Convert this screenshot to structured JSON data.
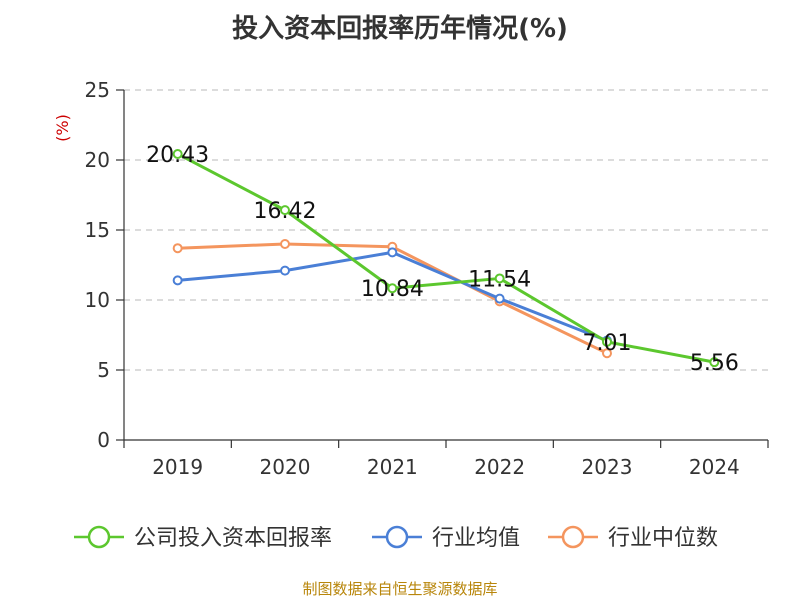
{
  "chart_data": {
    "type": "line",
    "title": "投入资本回报率历年情况(%)",
    "ylabel": "(%)",
    "xlabel": "",
    "categories": [
      "2019",
      "2020",
      "2021",
      "2022",
      "2023",
      "2024"
    ],
    "ylim": [
      0,
      25
    ],
    "yticks": [
      0,
      5,
      10,
      15,
      20,
      25
    ],
    "grid": true,
    "legend_position": "bottom",
    "series": [
      {
        "name": "公司投入资本回报率",
        "color": "#5cc72e",
        "values": [
          20.43,
          16.42,
          10.84,
          11.54,
          7.01,
          5.56
        ],
        "labels": [
          "20.43",
          "16.42",
          "10.84",
          "11.54",
          "7.01",
          "5.56"
        ]
      },
      {
        "name": "行业均值",
        "color": "#4a7fd6",
        "values": [
          11.4,
          12.1,
          13.4,
          10.1,
          7.1,
          null
        ]
      },
      {
        "name": "行业中位数",
        "color": "#f4955e",
        "values": [
          13.7,
          14.0,
          13.8,
          9.9,
          6.2,
          null
        ]
      }
    ]
  },
  "source_note": "制图数据来自恒生聚源数据库"
}
